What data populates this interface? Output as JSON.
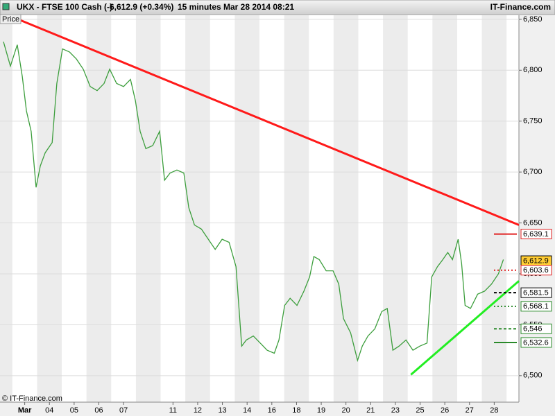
{
  "chart_data": {
    "type": "line",
    "header": {
      "instrument": "UKX - FTSE 100 Cash (-)",
      "quote": "6,612.9 (+0.34%)",
      "interval": "15 minutes",
      "timestamp": "Mar 28 2014 08:21",
      "brand": "IT-Finance.com"
    },
    "y_label": "Price",
    "footer": "© IT-Finance.com",
    "xlim": [
      0,
      21
    ],
    "ylim": [
      6474,
      6854
    ],
    "xticks": [
      {
        "value": 1,
        "label": "Mar"
      },
      {
        "value": 2,
        "label": "04"
      },
      {
        "value": 3,
        "label": "05"
      },
      {
        "value": 4,
        "label": "06"
      },
      {
        "value": 5,
        "label": "07"
      },
      {
        "value": 7,
        "label": "11"
      },
      {
        "value": 8,
        "label": "12"
      },
      {
        "value": 9,
        "label": "13"
      },
      {
        "value": 10,
        "label": "14"
      },
      {
        "value": 11,
        "label": "16"
      },
      {
        "value": 12,
        "label": "18"
      },
      {
        "value": 13,
        "label": "19"
      },
      {
        "value": 14,
        "label": "20"
      },
      {
        "value": 15,
        "label": "21"
      },
      {
        "value": 16,
        "label": "23"
      },
      {
        "value": 17,
        "label": "25"
      },
      {
        "value": 18,
        "label": "26"
      },
      {
        "value": 19,
        "label": "27"
      },
      {
        "value": 20,
        "label": "28"
      }
    ],
    "yticks": [
      {
        "value": 6850,
        "label": "6,850"
      },
      {
        "value": 6800,
        "label": "6,800"
      },
      {
        "value": 6750,
        "label": "6,750"
      },
      {
        "value": 6700,
        "label": "6,700"
      },
      {
        "value": 6650,
        "label": "6,650"
      },
      {
        "value": 6600,
        "label": "6,600"
      },
      {
        "value": 6550,
        "label": "6,550"
      },
      {
        "value": 6500,
        "label": "6,500"
      }
    ],
    "series": [
      {
        "name": "Price",
        "color": "#3c9e3c",
        "x": [
          0.14,
          0.42,
          0.7,
          0.9,
          1.07,
          1.26,
          1.46,
          1.63,
          1.83,
          2.11,
          2.3,
          2.53,
          2.81,
          3.09,
          3.37,
          3.65,
          3.93,
          4.21,
          4.44,
          4.72,
          5.0,
          5.28,
          5.48,
          5.67,
          5.9,
          6.18,
          6.46,
          6.66,
          6.88,
          7.16,
          7.44,
          7.64,
          7.87,
          8.15,
          8.43,
          8.71,
          8.99,
          9.27,
          9.55,
          9.78,
          9.97,
          10.25,
          10.53,
          10.81,
          11.1,
          11.29,
          11.52,
          11.74,
          12.02,
          12.3,
          12.53,
          12.7,
          12.92,
          13.2,
          13.48,
          13.71,
          13.9,
          14.19,
          14.47,
          14.66,
          14.89,
          15.17,
          15.45,
          15.67,
          15.9,
          16.15,
          16.43,
          16.71,
          16.99,
          17.28,
          17.47,
          17.7,
          17.92,
          18.12,
          18.31,
          18.54,
          18.68,
          18.82,
          19.04,
          19.33,
          19.61,
          19.89,
          20.17,
          20.37
        ],
        "values": [
          6828,
          6804,
          6825,
          6794,
          6760,
          6740,
          6685,
          6706,
          6719,
          6729,
          6787,
          6821,
          6818,
          6811,
          6801,
          6784,
          6780,
          6787,
          6801,
          6787,
          6784,
          6791,
          6770,
          6740,
          6723,
          6726,
          6740,
          6692,
          6699,
          6702,
          6699,
          6665,
          6648,
          6644,
          6634,
          6624,
          6634,
          6631,
          6607,
          6529,
          6535,
          6539,
          6532,
          6525,
          6522,
          6535,
          6569,
          6576,
          6569,
          6583,
          6597,
          6617,
          6614,
          6603,
          6603,
          6590,
          6556,
          6542,
          6515,
          6529,
          6539,
          6546,
          6563,
          6566,
          6525,
          6529,
          6535,
          6525,
          6529,
          6532,
          6597,
          6607,
          6614,
          6621,
          6614,
          6634,
          6610,
          6569,
          6566,
          6580,
          6583,
          6590,
          6600,
          6614
        ]
      }
    ],
    "trendlines": [
      {
        "color": "#ff1a1a",
        "x": [
          0.84,
          21
        ],
        "y": [
          6849,
          6648
        ]
      },
      {
        "color": "#22ee22",
        "x": [
          16.63,
          21
        ],
        "y": [
          6501,
          6593
        ]
      }
    ],
    "levels": [
      {
        "value": 6639.1,
        "label": "6,639.1",
        "color": "#e02020",
        "style": "solid"
      },
      {
        "value": 6612.9,
        "label": "6,612.9",
        "color": "#000000",
        "style": "current"
      },
      {
        "value": 6603.6,
        "label": "6,603.6",
        "color": "#e02020",
        "style": "dotted"
      },
      {
        "value": 6581.5,
        "label": "6,581.5",
        "color": "#000000",
        "style": "dashed"
      },
      {
        "value": 6568.1,
        "label": "6,568.1",
        "color": "#2a8a2a",
        "style": "dotted"
      },
      {
        "value": 6546,
        "label": "6,546",
        "color": "#2a8a2a",
        "style": "dashed"
      },
      {
        "value": 6532.6,
        "label": "6,532.6",
        "color": "#2a8a2a",
        "style": "solid"
      }
    ]
  }
}
